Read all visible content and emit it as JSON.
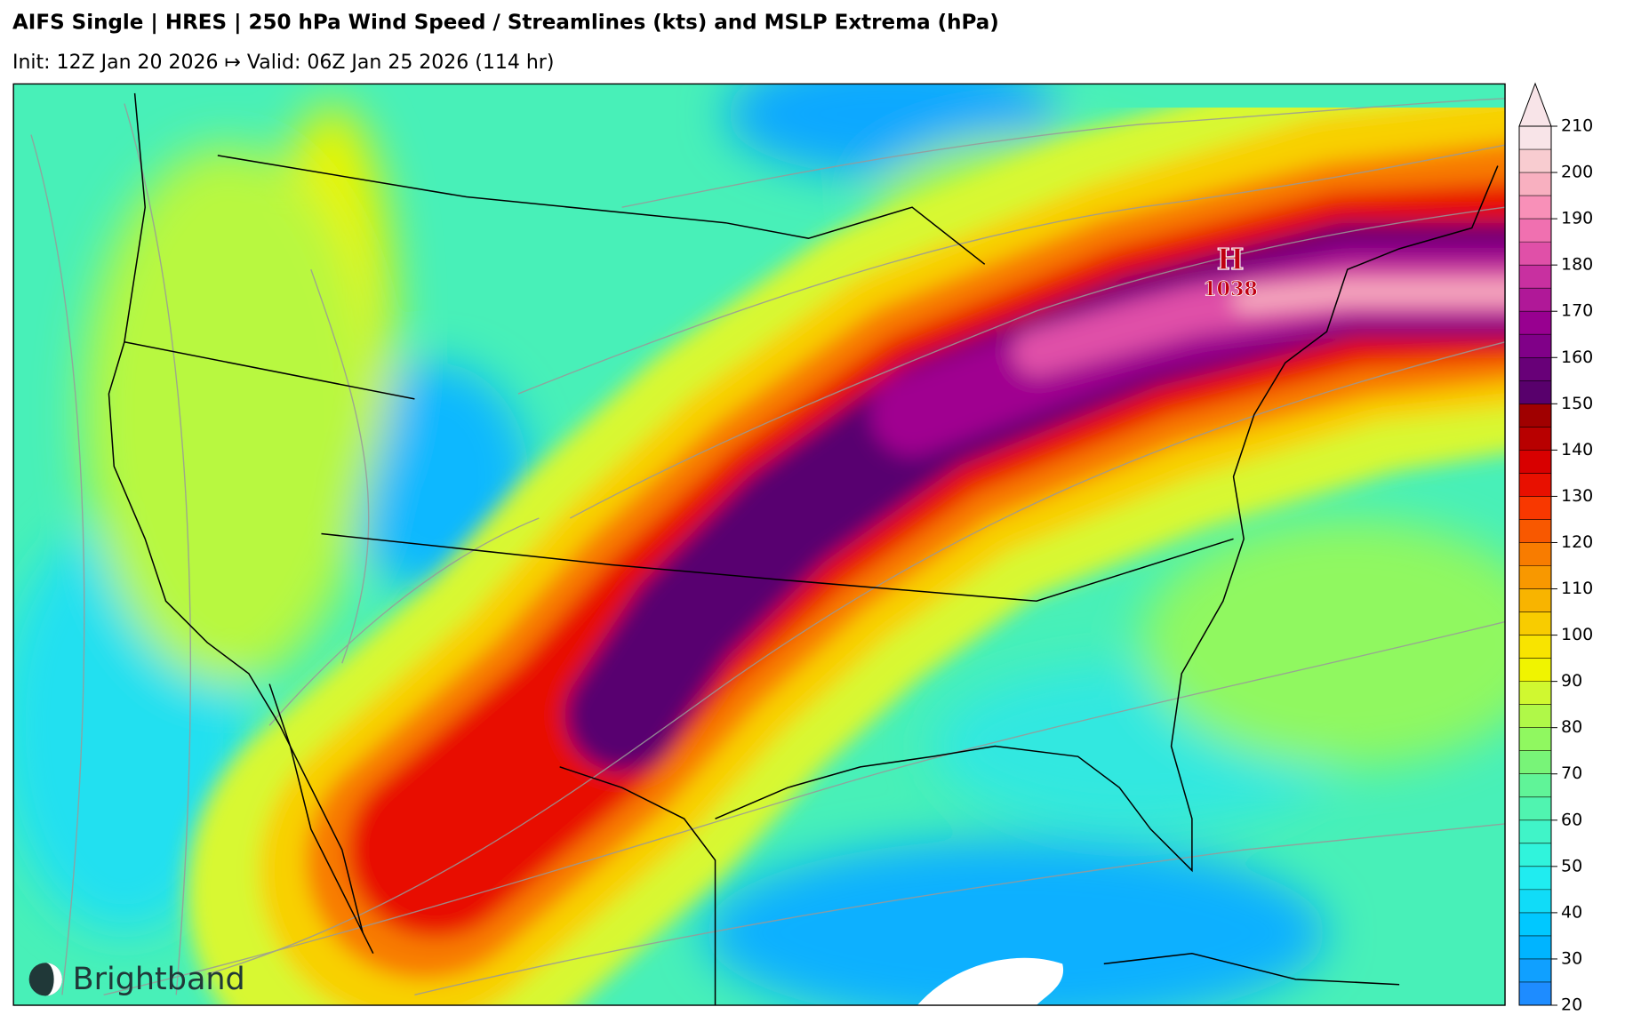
{
  "header": {
    "title": "AIFS Single | HRES | 250 hPa Wind Speed / Streamlines (kts) and MSLP Extrema (hPa)",
    "subtitle": "Init: 12Z Jan 20 2026 ↦ Valid: 06Z Jan 25 2026 (114 hr)"
  },
  "map": {
    "extrema": [
      {
        "symbol": "H",
        "value": 1038
      }
    ],
    "logo": "Brightband"
  },
  "colorbar": {
    "range": [
      20,
      210
    ],
    "ticks": [
      20,
      30,
      40,
      50,
      60,
      70,
      80,
      90,
      100,
      110,
      120,
      130,
      140,
      150,
      160,
      170,
      180,
      190,
      200,
      210
    ],
    "colors": [
      "#1e8cff",
      "#10a0ff",
      "#00b4ff",
      "#00c8ff",
      "#10dcf8",
      "#20ecf0",
      "#30f4dc",
      "#40f4c8",
      "#50f4b0",
      "#60f498",
      "#78f478",
      "#90f860",
      "#b0f848",
      "#d0f830",
      "#f0f400",
      "#f8e400",
      "#f8cc00",
      "#f8b400",
      "#f89800",
      "#f87c00",
      "#f85800",
      "#f83800",
      "#e81000",
      "#d80000",
      "#b80000",
      "#a00000",
      "#58006c",
      "#680078",
      "#800088",
      "#980090",
      "#b01898",
      "#c830a0",
      "#e050a8",
      "#f070b0",
      "#f890b8",
      "#f8b0c0",
      "#f8ccd0",
      "#f8e4e8"
    ]
  }
}
